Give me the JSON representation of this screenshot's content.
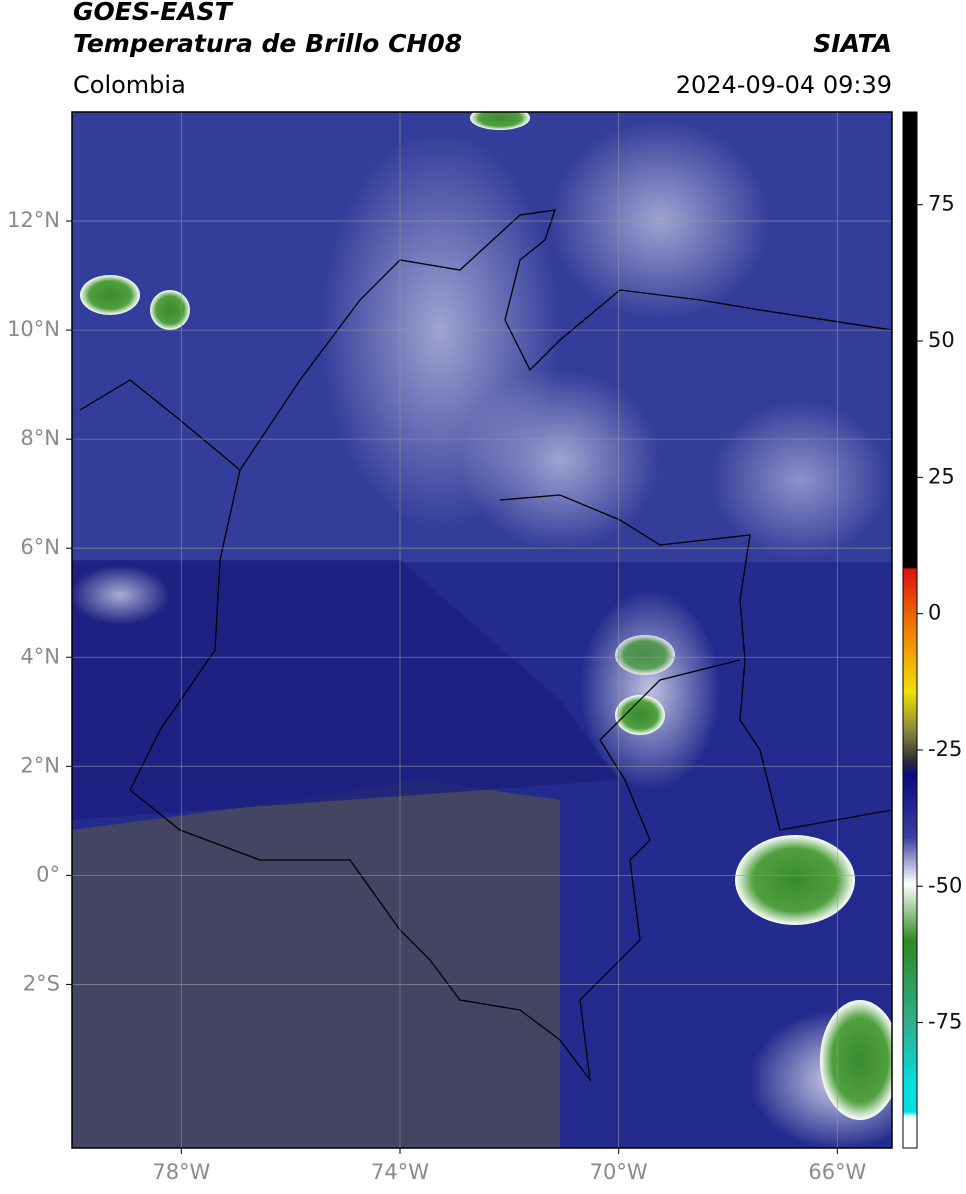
{
  "header": {
    "satellite": "GOES-EAST",
    "product": "Temperatura de Brillo CH08",
    "source": "SIATA",
    "region": "Colombia",
    "datetime": "2024-09-04 09:39"
  },
  "map": {
    "xlim": [
      -80,
      -65
    ],
    "ylim": [
      -5,
      14
    ],
    "xticks": [
      {
        "value": -78,
        "label": "78°W"
      },
      {
        "value": -74,
        "label": "74°W"
      },
      {
        "value": -70,
        "label": "70°W"
      },
      {
        "value": -66,
        "label": "66°W"
      }
    ],
    "yticks": [
      {
        "value": 12,
        "label": "12°N"
      },
      {
        "value": 10,
        "label": "10°N"
      },
      {
        "value": 8,
        "label": "8°N"
      },
      {
        "value": 6,
        "label": "6°N"
      },
      {
        "value": 4,
        "label": "4°N"
      },
      {
        "value": 2,
        "label": "2°N"
      },
      {
        "value": 0,
        "label": "0°"
      },
      {
        "value": -2,
        "label": "2°S"
      }
    ],
    "grid": true
  },
  "colorbar": {
    "lim": [
      -98,
      92
    ],
    "ticks": [
      75,
      50,
      25,
      0,
      -25,
      -50,
      -75
    ]
  }
}
